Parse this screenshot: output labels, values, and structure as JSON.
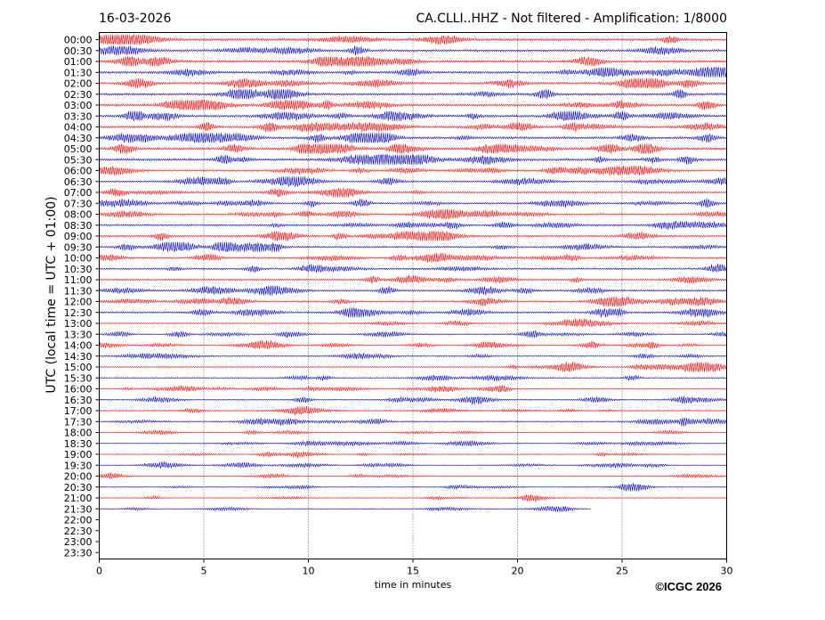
{
  "header": {
    "date": "16-03-2026",
    "station_title": "CA.CLLI..HHZ - Not filtered - Amplification: 1/8000",
    "copyright": "©ICGC 2026"
  },
  "chart_data": {
    "type": "line",
    "title": "CA.CLLI..HHZ - Not filtered - Amplification: 1/8000",
    "xlabel": "time in minutes",
    "ylabel": "UTC (local time = UTC + 01:00)",
    "xlim": [
      0,
      30
    ],
    "x_ticks": [
      "0",
      "5",
      "10",
      "15",
      "20",
      "25",
      "30"
    ],
    "grid": "vertical-dotted",
    "trace_colors": [
      "#ff0000",
      "#0000cc"
    ],
    "rows": [
      "00:00",
      "00:30",
      "01:00",
      "01:30",
      "02:00",
      "02:30",
      "03:00",
      "03:30",
      "04:00",
      "04:30",
      "05:00",
      "05:30",
      "06:00",
      "06:30",
      "07:00",
      "07:30",
      "08:00",
      "08:30",
      "09:00",
      "09:30",
      "10:00",
      "10:30",
      "11:00",
      "11:30",
      "12:00",
      "12:30",
      "13:00",
      "13:30",
      "14:00",
      "14:30",
      "15:00",
      "15:30",
      "16:00",
      "16:30",
      "17:00",
      "17:30",
      "18:00",
      "18:30",
      "19:00",
      "19:30",
      "20:00",
      "20:30",
      "21:00",
      "21:30",
      "22:00",
      "22:30",
      "23:00",
      "23:30"
    ],
    "last_row_with_data": "21:30",
    "last_trace_end_minute": 23.5
  }
}
